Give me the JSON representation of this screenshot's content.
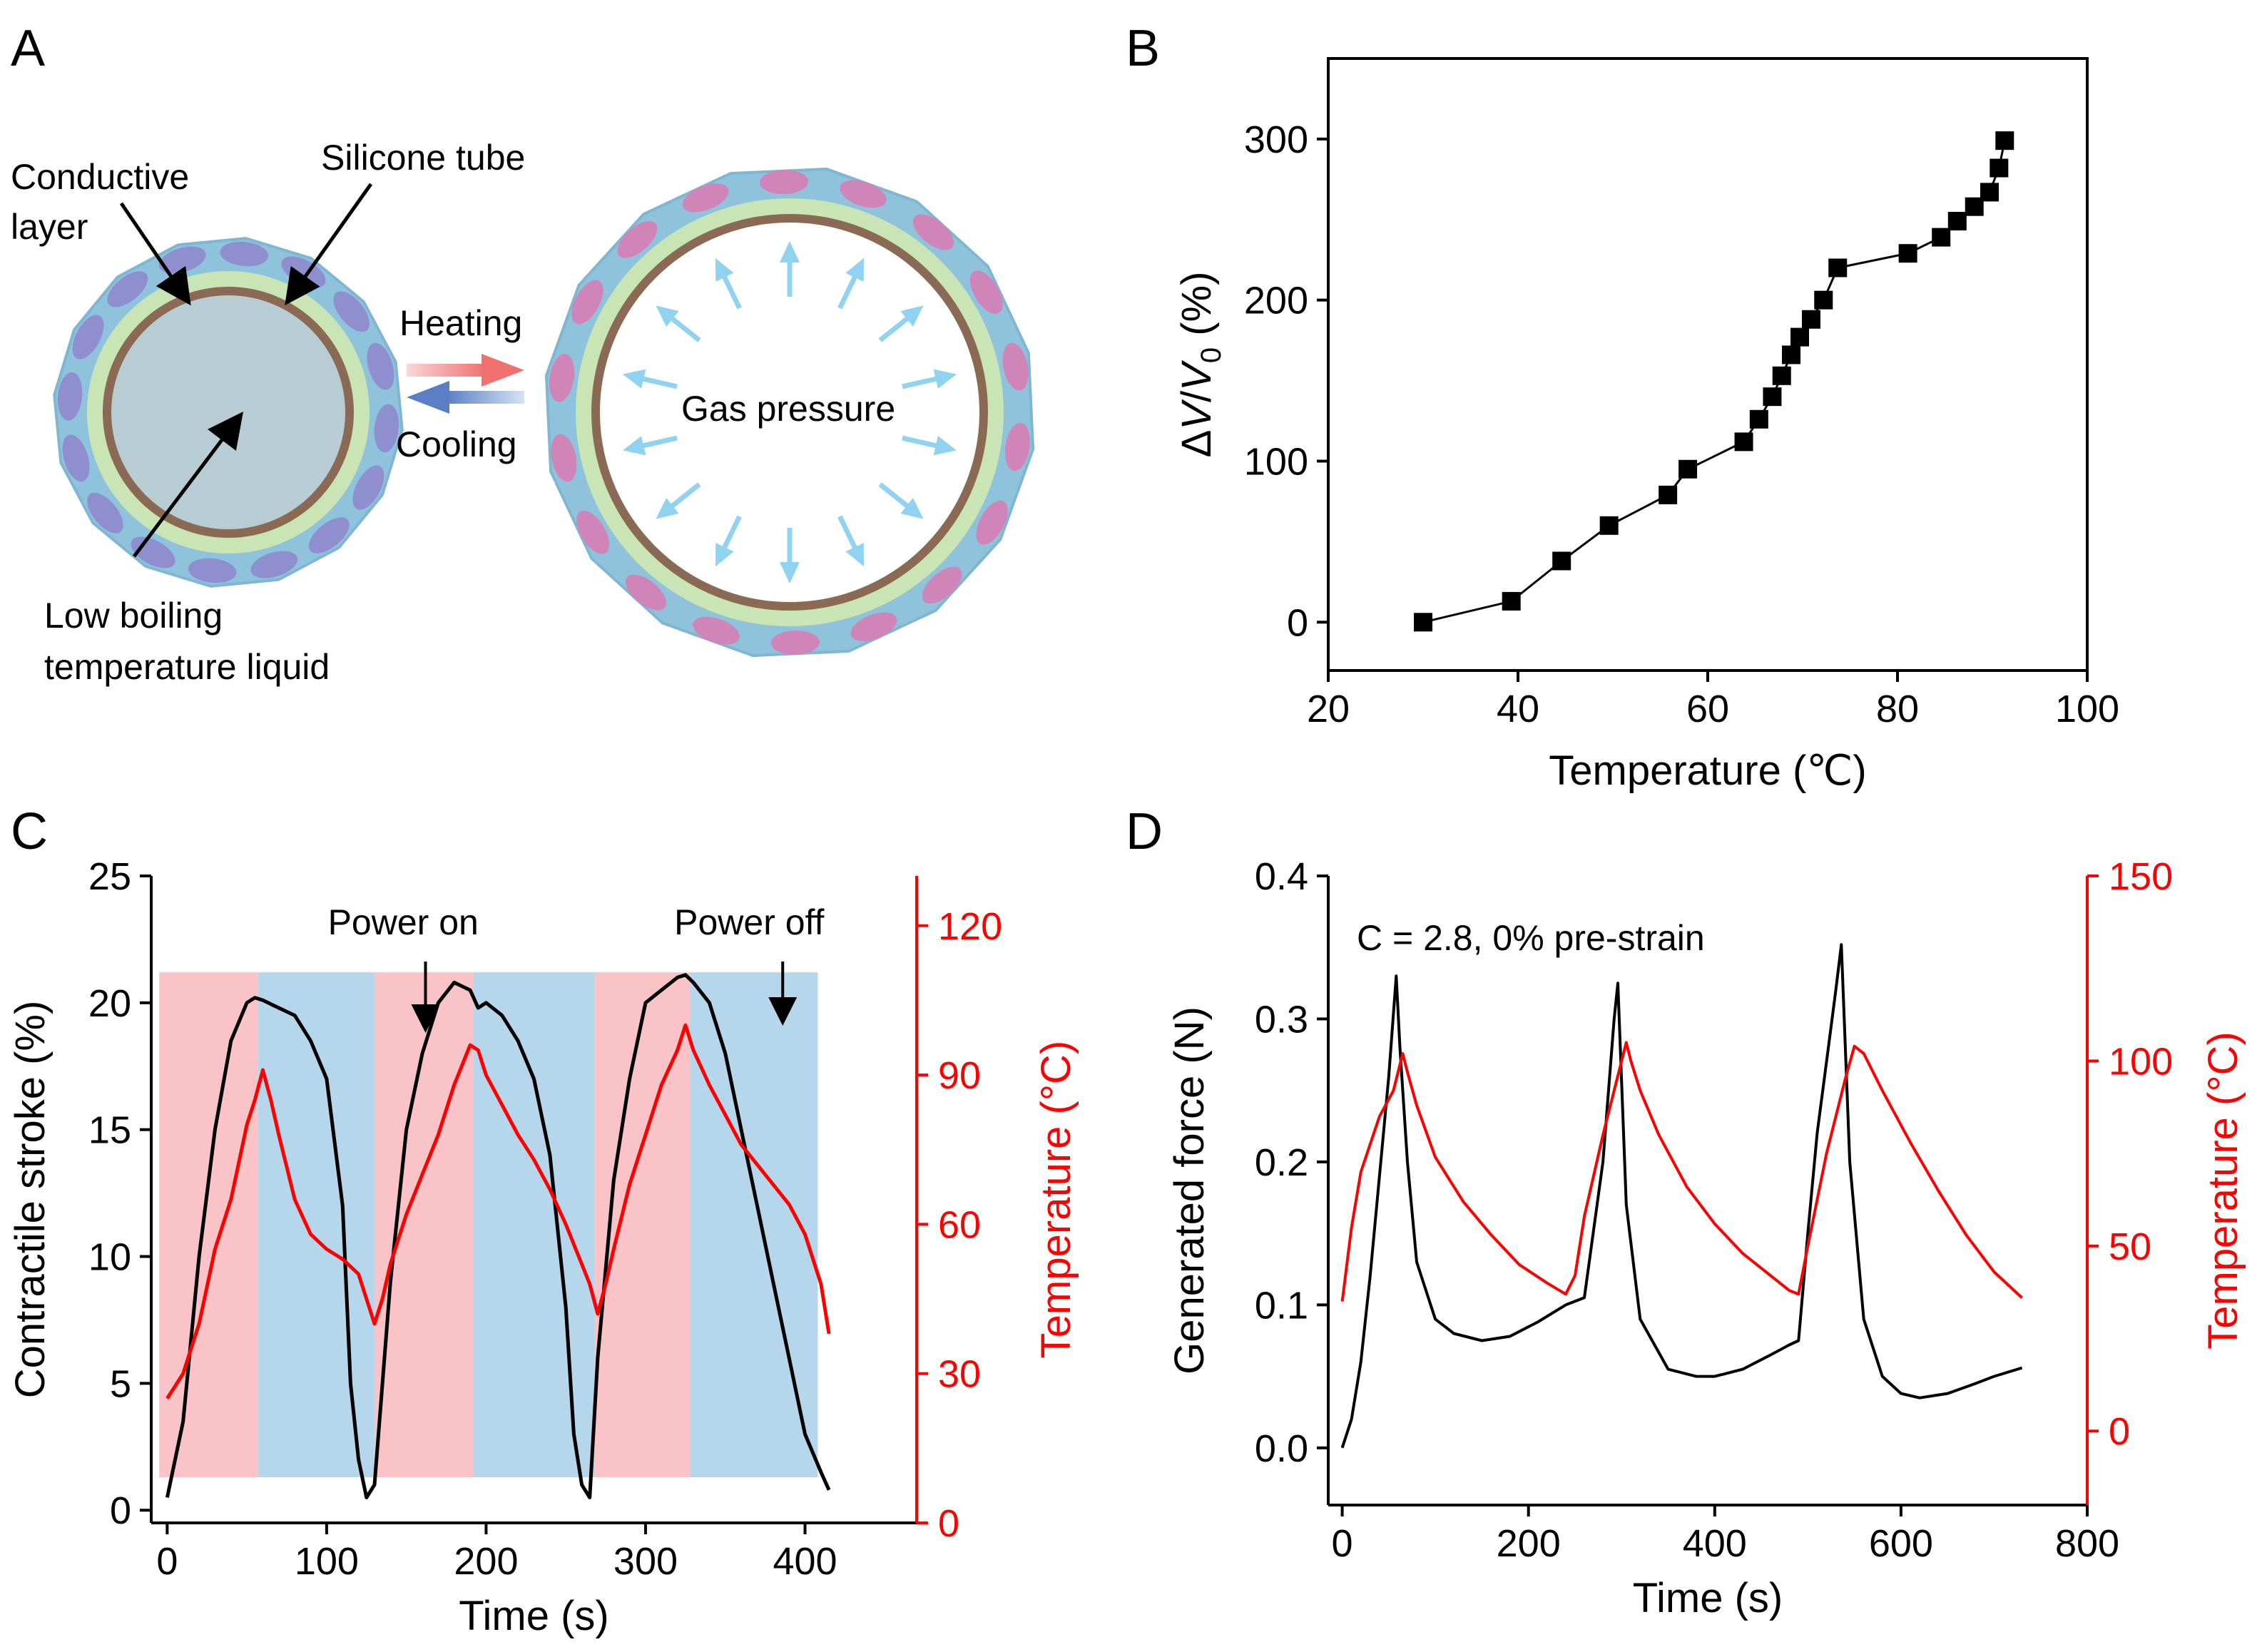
{
  "panel_labels": {
    "a": "A",
    "b": "B",
    "c": "C",
    "d": "D"
  },
  "schematic": {
    "conductive_layer_line1": "Conductive",
    "conductive_layer_line2": "layer",
    "silicone_tube": "Silicone tube",
    "heating": "Heating",
    "cooling": "Cooling",
    "gas_pressure": "Gas pressure",
    "liquid_line1": "Low boiling",
    "liquid_line2": "temperature liquid",
    "colors": {
      "sleeve": "#8fc3dc",
      "fiber_cold": "#8f8fd0",
      "fiber_hot": "#cf85b8",
      "tube": "#c9e4b5",
      "core": "#8a6a55",
      "liquid": "#b8ccd4",
      "arrow_heat": "#f08a8a",
      "arrow_cool": "#6f8fc8",
      "pressure_arrow": "#8fd3f0"
    }
  },
  "chart_data": [
    {
      "panel": "B",
      "type": "scatter",
      "xlabel": "Temperature (℃)",
      "ylabel_parts": {
        "delta": "Δ",
        "v": "V",
        "slash": "/",
        "v0": "V",
        "sub0": "0",
        "unit": " (%)"
      },
      "xlim": [
        20,
        100
      ],
      "ylim": [
        -30,
        350
      ],
      "xticks": [
        20,
        40,
        60,
        80,
        100
      ],
      "yticks": [
        0,
        100,
        200,
        300
      ],
      "x": [
        30,
        39.3,
        44.6,
        49.6,
        55.8,
        57.9,
        63.8,
        65.4,
        66.8,
        67.8,
        68.8,
        69.7,
        70.9,
        72.2,
        73.7,
        81.1,
        84.6,
        86.3,
        88.1,
        89.7,
        90.7,
        91.3
      ],
      "y": [
        0,
        13,
        38,
        60,
        79,
        95,
        112,
        126,
        140,
        153,
        166,
        177,
        188,
        200,
        220,
        229,
        239,
        249,
        258,
        267,
        282,
        299
      ],
      "marker_color": "#000000"
    },
    {
      "panel": "C",
      "type": "line",
      "xlabel": "Time (s)",
      "ylabel_left": "Contractile stroke (%)",
      "ylabel_right": "Temperature (°C)",
      "xlim": [
        -10,
        470
      ],
      "ylim_left": [
        -0.5,
        25
      ],
      "ylim_right": [
        0,
        130
      ],
      "xticks": [
        0,
        100,
        200,
        300,
        400
      ],
      "yticks_left": [
        0,
        5,
        10,
        15,
        20,
        25
      ],
      "yticks_right": [
        0,
        30,
        60,
        90,
        120
      ],
      "annotations": {
        "power_on": "Power on",
        "power_off": "Power off"
      },
      "shaded_intervals": [
        {
          "state": "heating",
          "start": -5,
          "end": 57
        },
        {
          "state": "cooling",
          "start": 57,
          "end": 130
        },
        {
          "state": "heating",
          "start": 130,
          "end": 192
        },
        {
          "state": "cooling",
          "start": 192,
          "end": 268
        },
        {
          "state": "heating",
          "start": 268,
          "end": 328
        },
        {
          "state": "cooling",
          "start": 328,
          "end": 408
        }
      ],
      "shade_top_c": 21.2,
      "shade_bottom_c": 1.3,
      "series": [
        {
          "axis": "left",
          "color": "#000000",
          "x": [
            0,
            10,
            20,
            30,
            40,
            50,
            55,
            60,
            70,
            80,
            90,
            100,
            110,
            115,
            120,
            125,
            130,
            140,
            150,
            160,
            170,
            180,
            190,
            195,
            200,
            210,
            220,
            230,
            240,
            250,
            255,
            260,
            265,
            270,
            280,
            290,
            300,
            310,
            320,
            325,
            330,
            340,
            350,
            360,
            370,
            380,
            390,
            400,
            410,
            415
          ],
          "y": [
            0.5,
            3.5,
            10,
            15,
            18.5,
            20,
            20.2,
            20.1,
            19.8,
            19.5,
            18.5,
            17,
            12,
            5,
            2,
            0.5,
            1,
            9,
            15,
            18,
            20,
            20.8,
            20.5,
            19.8,
            20,
            19.5,
            18.5,
            17,
            14,
            8,
            3,
            1,
            0.5,
            6,
            13,
            17,
            20,
            20.5,
            21,
            21.1,
            20.8,
            20,
            18,
            15,
            12,
            9,
            6,
            3,
            1.5,
            0.8
          ]
        },
        {
          "axis": "right",
          "color": "#ff0000",
          "x": [
            0,
            10,
            20,
            30,
            40,
            50,
            55,
            60,
            65,
            70,
            80,
            90,
            100,
            110,
            120,
            125,
            130,
            135,
            140,
            150,
            160,
            170,
            180,
            190,
            195,
            200,
            210,
            220,
            230,
            240,
            250,
            260,
            265,
            270,
            275,
            280,
            290,
            300,
            310,
            320,
            325,
            330,
            340,
            350,
            360,
            370,
            380,
            390,
            400,
            410,
            415
          ],
          "y": [
            25,
            30,
            40,
            55,
            65,
            80,
            85,
            91,
            85,
            78,
            65,
            58,
            55,
            53,
            50,
            45,
            40,
            45,
            52,
            62,
            70,
            78,
            88,
            96,
            95,
            90,
            84,
            78,
            73,
            67,
            60,
            52,
            48,
            42,
            48,
            55,
            68,
            78,
            88,
            95,
            100,
            95,
            88,
            82,
            76,
            72,
            68,
            64,
            58,
            48,
            38
          ]
        }
      ]
    },
    {
      "panel": "D",
      "type": "line",
      "xlabel": "Time (s)",
      "ylabel_left": "Generated force (N)",
      "ylabel_right": "Temperature (°C)",
      "annotation": "C = 2.8, 0% pre-strain",
      "xlim": [
        -15,
        800
      ],
      "ylim_left": [
        -0.04,
        0.4
      ],
      "ylim_right": [
        -20,
        150
      ],
      "xticks": [
        0,
        200,
        400,
        600,
        800
      ],
      "yticks_left": [
        0.0,
        0.1,
        0.2,
        0.3,
        0.4
      ],
      "yticks_right": [
        0,
        50,
        100,
        150
      ],
      "series": [
        {
          "axis": "left",
          "color": "#000000",
          "x": [
            0,
            10,
            20,
            30,
            40,
            50,
            58,
            62,
            70,
            80,
            100,
            120,
            150,
            180,
            210,
            240,
            260,
            280,
            292,
            296,
            305,
            320,
            350,
            380,
            400,
            430,
            460,
            480,
            490,
            500,
            510,
            520,
            530,
            536,
            545,
            560,
            580,
            600,
            620,
            650,
            680,
            700,
            730
          ],
          "y": [
            0.0,
            0.02,
            0.06,
            0.12,
            0.19,
            0.26,
            0.33,
            0.28,
            0.2,
            0.13,
            0.09,
            0.08,
            0.075,
            0.078,
            0.088,
            0.1,
            0.105,
            0.2,
            0.3,
            0.325,
            0.17,
            0.09,
            0.055,
            0.05,
            0.05,
            0.055,
            0.065,
            0.072,
            0.075,
            0.15,
            0.22,
            0.27,
            0.32,
            0.352,
            0.2,
            0.09,
            0.05,
            0.038,
            0.035,
            0.038,
            0.045,
            0.05,
            0.056
          ]
        },
        {
          "axis": "right",
          "color": "#ff0000",
          "x": [
            0,
            10,
            20,
            40,
            55,
            65,
            70,
            80,
            100,
            130,
            160,
            190,
            220,
            240,
            250,
            260,
            280,
            295,
            305,
            310,
            320,
            340,
            370,
            400,
            430,
            460,
            480,
            490,
            500,
            520,
            540,
            550,
            560,
            580,
            610,
            640,
            670,
            700,
            730
          ],
          "y": [
            35,
            55,
            70,
            85,
            92,
            102,
            97,
            88,
            74,
            62,
            53,
            45,
            40,
            37,
            42,
            58,
            80,
            95,
            105,
            100,
            92,
            80,
            66,
            56,
            48,
            42,
            38,
            37,
            50,
            75,
            95,
            104,
            102,
            92,
            78,
            65,
            53,
            43,
            36
          ]
        }
      ]
    }
  ]
}
